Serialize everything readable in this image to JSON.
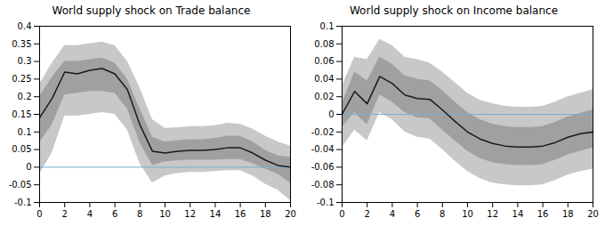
{
  "chart_data": [
    {
      "type": "line",
      "title": "World supply shock on Trade balance",
      "x": [
        0,
        1,
        2,
        3,
        4,
        5,
        6,
        7,
        8,
        9,
        10,
        11,
        12,
        13,
        14,
        15,
        16,
        17,
        18,
        19,
        20
      ],
      "values": [
        0.14,
        0.195,
        0.27,
        0.265,
        0.275,
        0.28,
        0.265,
        0.22,
        0.12,
        0.045,
        0.04,
        0.045,
        0.048,
        0.048,
        0.05,
        0.055,
        0.055,
        0.04,
        0.02,
        0.005,
        0.0
      ],
      "color": "#1a1a1a",
      "bands": [
        {
          "lo": [
            -0.02,
            0.04,
            0.145,
            0.145,
            0.15,
            0.155,
            0.15,
            0.105,
            0.01,
            -0.045,
            -0.025,
            -0.018,
            -0.015,
            -0.015,
            -0.012,
            -0.01,
            -0.01,
            -0.025,
            -0.048,
            -0.065,
            -0.095
          ],
          "hi": [
            0.235,
            0.295,
            0.345,
            0.345,
            0.35,
            0.355,
            0.345,
            0.3,
            0.225,
            0.135,
            0.11,
            0.112,
            0.115,
            0.115,
            0.118,
            0.125,
            0.122,
            0.108,
            0.088,
            0.072,
            0.06
          ],
          "color": "#c8c8c8"
        },
        {
          "lo": [
            0.07,
            0.12,
            0.205,
            0.21,
            0.215,
            0.215,
            0.21,
            0.165,
            0.07,
            0.005,
            0.015,
            0.018,
            0.02,
            0.02,
            0.02,
            0.022,
            0.022,
            0.01,
            -0.005,
            -0.02,
            -0.045
          ],
          "hi": [
            0.2,
            0.255,
            0.3,
            0.3,
            0.305,
            0.31,
            0.295,
            0.25,
            0.165,
            0.085,
            0.072,
            0.075,
            0.078,
            0.078,
            0.082,
            0.088,
            0.088,
            0.072,
            0.048,
            0.032,
            0.028
          ],
          "color": "#a0a0a0"
        }
      ],
      "reference_line": {
        "value": 0,
        "color": "#7aafd4"
      },
      "xlim": [
        0,
        20
      ],
      "xticks": [
        0,
        2,
        4,
        6,
        8,
        10,
        12,
        14,
        16,
        18,
        20
      ],
      "ylim": [
        -0.1,
        0.4
      ],
      "yticks": [
        -0.1,
        -0.05,
        0,
        0.05,
        0.1,
        0.15,
        0.2,
        0.25,
        0.3,
        0.35,
        0.4
      ],
      "grid": false
    },
    {
      "type": "line",
      "title": "World supply shock on Income balance",
      "x": [
        0,
        1,
        2,
        3,
        4,
        5,
        6,
        7,
        8,
        9,
        10,
        11,
        12,
        13,
        14,
        15,
        16,
        17,
        18,
        19,
        20
      ],
      "values": [
        0.0,
        0.026,
        0.012,
        0.043,
        0.035,
        0.022,
        0.018,
        0.017,
        0.005,
        -0.008,
        -0.02,
        -0.028,
        -0.033,
        -0.036,
        -0.037,
        -0.037,
        -0.036,
        -0.032,
        -0.026,
        -0.022,
        -0.02
      ],
      "color": "#1a1a1a",
      "bands": [
        {
          "lo": [
            -0.038,
            -0.018,
            -0.03,
            0.002,
            -0.006,
            -0.02,
            -0.026,
            -0.028,
            -0.04,
            -0.053,
            -0.065,
            -0.073,
            -0.078,
            -0.08,
            -0.081,
            -0.081,
            -0.08,
            -0.075,
            -0.069,
            -0.065,
            -0.062
          ],
          "hi": [
            0.032,
            0.065,
            0.062,
            0.085,
            0.078,
            0.065,
            0.062,
            0.058,
            0.048,
            0.036,
            0.024,
            0.016,
            0.012,
            0.009,
            0.008,
            0.008,
            0.009,
            0.014,
            0.02,
            0.024,
            0.028
          ],
          "color": "#c8c8c8"
        },
        {
          "lo": [
            -0.015,
            0.002,
            -0.012,
            0.022,
            0.014,
            0.002,
            -0.004,
            -0.005,
            -0.018,
            -0.03,
            -0.042,
            -0.05,
            -0.055,
            -0.057,
            -0.058,
            -0.058,
            -0.057,
            -0.052,
            -0.046,
            -0.042,
            -0.038
          ],
          "hi": [
            0.012,
            0.048,
            0.038,
            0.065,
            0.057,
            0.044,
            0.04,
            0.038,
            0.027,
            0.014,
            0.002,
            -0.006,
            -0.011,
            -0.014,
            -0.015,
            -0.015,
            -0.014,
            -0.009,
            -0.003,
            0.001,
            0.005
          ],
          "color": "#a0a0a0"
        }
      ],
      "reference_line": {
        "value": 0,
        "color": "#7aafd4"
      },
      "xlim": [
        0,
        20
      ],
      "xticks": [
        0,
        2,
        4,
        6,
        8,
        10,
        12,
        14,
        16,
        18,
        20
      ],
      "ylim": [
        -0.1,
        0.1
      ],
      "yticks": [
        -0.1,
        -0.08,
        -0.06,
        -0.04,
        -0.02,
        0,
        0.02,
        0.04,
        0.06,
        0.08,
        0.1
      ],
      "grid": false
    }
  ]
}
